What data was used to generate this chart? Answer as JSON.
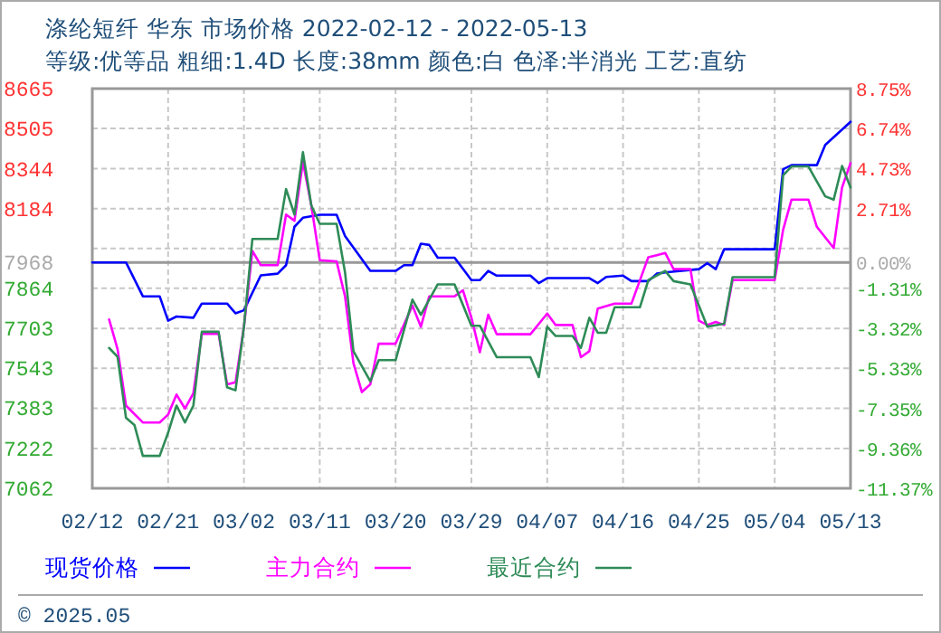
{
  "chart_data": {
    "type": "line",
    "title": "涤纶短纤 华东 市场价格 2022-02-12 - 2022-05-13",
    "subtitle": "等级:优等品 粗细:1.4D 长度:38mm 颜色:白 色泽:半消光 工艺:直纺",
    "xlim": [
      "2022-02-12",
      "2022-05-13"
    ],
    "xticks": [
      {
        "value": "2022-02-12",
        "label": "02/12"
      },
      {
        "value": "2022-02-21",
        "label": "02/21"
      },
      {
        "value": "2022-03-02",
        "label": "03/02"
      },
      {
        "value": "2022-03-11",
        "label": "03/11"
      },
      {
        "value": "2022-03-20",
        "label": "03/20"
      },
      {
        "value": "2022-03-29",
        "label": "03/29"
      },
      {
        "value": "2022-04-07",
        "label": "04/07"
      },
      {
        "value": "2022-04-16",
        "label": "04/16"
      },
      {
        "value": "2022-04-25",
        "label": "04/25"
      },
      {
        "value": "2022-05-04",
        "label": "05/04"
      },
      {
        "value": "2022-05-13",
        "label": "05/13"
      }
    ],
    "ylim": [
      7062,
      8665
    ],
    "yticks": [
      8665,
      8505,
      8344,
      8184,
      {
        "value": 8024,
        "label": null
      },
      7968,
      7864,
      7703,
      7543,
      7383,
      7222,
      7062
    ],
    "y2lim": [
      -11.37,
      8.75
    ],
    "y2ticks": [
      {
        "value": 8.75,
        "label": "8.75%"
      },
      {
        "value": 6.74,
        "label": "6.74%"
      },
      {
        "value": 4.73,
        "label": "4.73%"
      },
      {
        "value": 2.71,
        "label": "2.71%"
      },
      {
        "value": 0,
        "label": "0.00%"
      },
      {
        "value": -1.31,
        "label": "-1.31%"
      },
      {
        "value": -3.32,
        "label": "-3.32%"
      },
      {
        "value": -5.33,
        "label": "-5.33%"
      },
      {
        "value": -7.35,
        "label": "-7.35%"
      },
      {
        "value": -9.36,
        "label": "-9.36%"
      },
      {
        "value": -11.37,
        "label": "-11.37%"
      }
    ],
    "ref_lines": [
      {
        "axis": "y",
        "value": 7968,
        "color": "#999999"
      }
    ],
    "grid": true,
    "legend": "bottom",
    "series": [
      {
        "name": "现货价格",
        "color": "#0000ff",
        "x": [
          "2022-02-12",
          "2022-02-16",
          "2022-02-18",
          "2022-02-20",
          "2022-02-21",
          "2022-02-22",
          "2022-02-24",
          "2022-02-25",
          "2022-02-28",
          "2022-03-01",
          "2022-03-02",
          "2022-03-04",
          "2022-03-06",
          "2022-03-07",
          "2022-03-08",
          "2022-03-09",
          "2022-03-11",
          "2022-03-13",
          "2022-03-14",
          "2022-03-17",
          "2022-03-20",
          "2022-03-21",
          "2022-03-22",
          "2022-03-23",
          "2022-03-24",
          "2022-03-25",
          "2022-03-27",
          "2022-03-29",
          "2022-03-30",
          "2022-03-31",
          "2022-04-01",
          "2022-04-05",
          "2022-04-06",
          "2022-04-07",
          "2022-04-12",
          "2022-04-13",
          "2022-04-14",
          "2022-04-16",
          "2022-04-17",
          "2022-04-19",
          "2022-04-20",
          "2022-04-21",
          "2022-04-25",
          "2022-04-26",
          "2022-04-27",
          "2022-04-28",
          "2022-05-04",
          "2022-05-05",
          "2022-05-06",
          "2022-05-09",
          "2022-05-10",
          "2022-05-13"
        ],
        "values": [
          7968,
          7968,
          7832,
          7832,
          7734,
          7751,
          7746,
          7803,
          7803,
          7764,
          7776,
          7916,
          7923,
          7957,
          8111,
          8147,
          8159,
          8159,
          8074,
          7934,
          7934,
          7957,
          7957,
          8043,
          8038,
          7987,
          7987,
          7897,
          7897,
          7934,
          7915,
          7915,
          7885,
          7905,
          7905,
          7885,
          7910,
          7915,
          7893,
          7893,
          7923,
          7928,
          7941,
          7965,
          7941,
          8021,
          8021,
          8342,
          8358,
          8358,
          8439,
          8532
        ]
      },
      {
        "name": "主力合约",
        "color": "#ff00ff",
        "x": [
          "2022-02-14",
          "2022-02-15",
          "2022-02-16",
          "2022-02-18",
          "2022-02-20",
          "2022-02-21",
          "2022-02-22",
          "2022-02-23",
          "2022-02-24",
          "2022-02-25",
          "2022-02-27",
          "2022-02-28",
          "2022-03-01",
          "2022-03-02",
          "2022-03-03",
          "2022-03-04",
          "2022-03-06",
          "2022-03-07",
          "2022-03-08",
          "2022-03-09",
          "2022-03-10",
          "2022-03-11",
          "2022-03-13",
          "2022-03-14",
          "2022-03-15",
          "2022-03-16",
          "2022-03-17",
          "2022-03-18",
          "2022-03-20",
          "2022-03-22",
          "2022-03-23",
          "2022-03-24",
          "2022-03-27",
          "2022-03-28",
          "2022-03-29",
          "2022-03-30",
          "2022-03-31",
          "2022-04-01",
          "2022-04-05",
          "2022-04-07",
          "2022-04-08",
          "2022-04-10",
          "2022-04-11",
          "2022-04-12",
          "2022-04-13",
          "2022-04-15",
          "2022-04-17",
          "2022-04-19",
          "2022-04-20",
          "2022-04-21",
          "2022-04-22",
          "2022-04-24",
          "2022-04-25",
          "2022-04-26",
          "2022-04-27",
          "2022-04-28",
          "2022-04-29",
          "2022-05-04",
          "2022-05-05",
          "2022-05-06",
          "2022-05-08",
          "2022-05-09",
          "2022-05-11",
          "2022-05-12",
          "2022-05-13"
        ],
        "values": [
          7739,
          7620,
          7394,
          7326,
          7326,
          7358,
          7438,
          7382,
          7443,
          7681,
          7681,
          7479,
          7487,
          7710,
          8014,
          7957,
          7957,
          8160,
          8135,
          8371,
          8196,
          7977,
          7972,
          7832,
          7564,
          7448,
          7479,
          7642,
          7642,
          7795,
          7710,
          7832,
          7832,
          7856,
          7746,
          7608,
          7758,
          7680,
          7680,
          7763,
          7717,
          7717,
          7588,
          7612,
          7783,
          7803,
          7803,
          7989,
          7997,
          8006,
          7941,
          7941,
          7734,
          7717,
          7729,
          7717,
          7897,
          7897,
          8099,
          8220,
          8220,
          8111,
          8026,
          8269,
          8366
        ]
      },
      {
        "name": "最近合约",
        "color": "#2e8b57",
        "x": [
          "2022-02-14",
          "2022-02-15",
          "2022-02-16",
          "2022-02-17",
          "2022-02-18",
          "2022-02-20",
          "2022-02-21",
          "2022-02-22",
          "2022-02-23",
          "2022-02-24",
          "2022-02-25",
          "2022-02-27",
          "2022-02-28",
          "2022-03-01",
          "2022-03-02",
          "2022-03-03",
          "2022-03-06",
          "2022-03-07",
          "2022-03-08",
          "2022-03-09",
          "2022-03-10",
          "2022-03-11",
          "2022-03-13",
          "2022-03-14",
          "2022-03-15",
          "2022-03-17",
          "2022-03-18",
          "2022-03-20",
          "2022-03-22",
          "2022-03-23",
          "2022-03-25",
          "2022-03-27",
          "2022-03-29",
          "2022-03-30",
          "2022-04-01",
          "2022-04-05",
          "2022-04-06",
          "2022-04-07",
          "2022-04-08",
          "2022-04-10",
          "2022-04-11",
          "2022-04-12",
          "2022-04-13",
          "2022-04-14",
          "2022-04-15",
          "2022-04-18",
          "2022-04-19",
          "2022-04-21",
          "2022-04-22",
          "2022-04-24",
          "2022-04-26",
          "2022-04-28",
          "2022-04-29",
          "2022-05-04",
          "2022-05-05",
          "2022-05-06",
          "2022-05-08",
          "2022-05-10",
          "2022-05-11",
          "2022-05-12",
          "2022-05-13"
        ],
        "values": [
          7625,
          7589,
          7345,
          7316,
          7192,
          7192,
          7285,
          7394,
          7326,
          7394,
          7690,
          7690,
          7467,
          7455,
          7710,
          8062,
          8062,
          8262,
          8160,
          8410,
          8196,
          8123,
          8123,
          7928,
          7612,
          7491,
          7576,
          7576,
          7819,
          7758,
          7880,
          7880,
          7714,
          7714,
          7588,
          7588,
          7508,
          7710,
          7673,
          7673,
          7625,
          7746,
          7686,
          7686,
          7788,
          7788,
          7897,
          7934,
          7893,
          7880,
          7710,
          7722,
          7909,
          7909,
          8317,
          8353,
          8353,
          8233,
          8220,
          8355,
          8269
        ]
      }
    ],
    "annotations": [
      "© 2025.05"
    ]
  }
}
